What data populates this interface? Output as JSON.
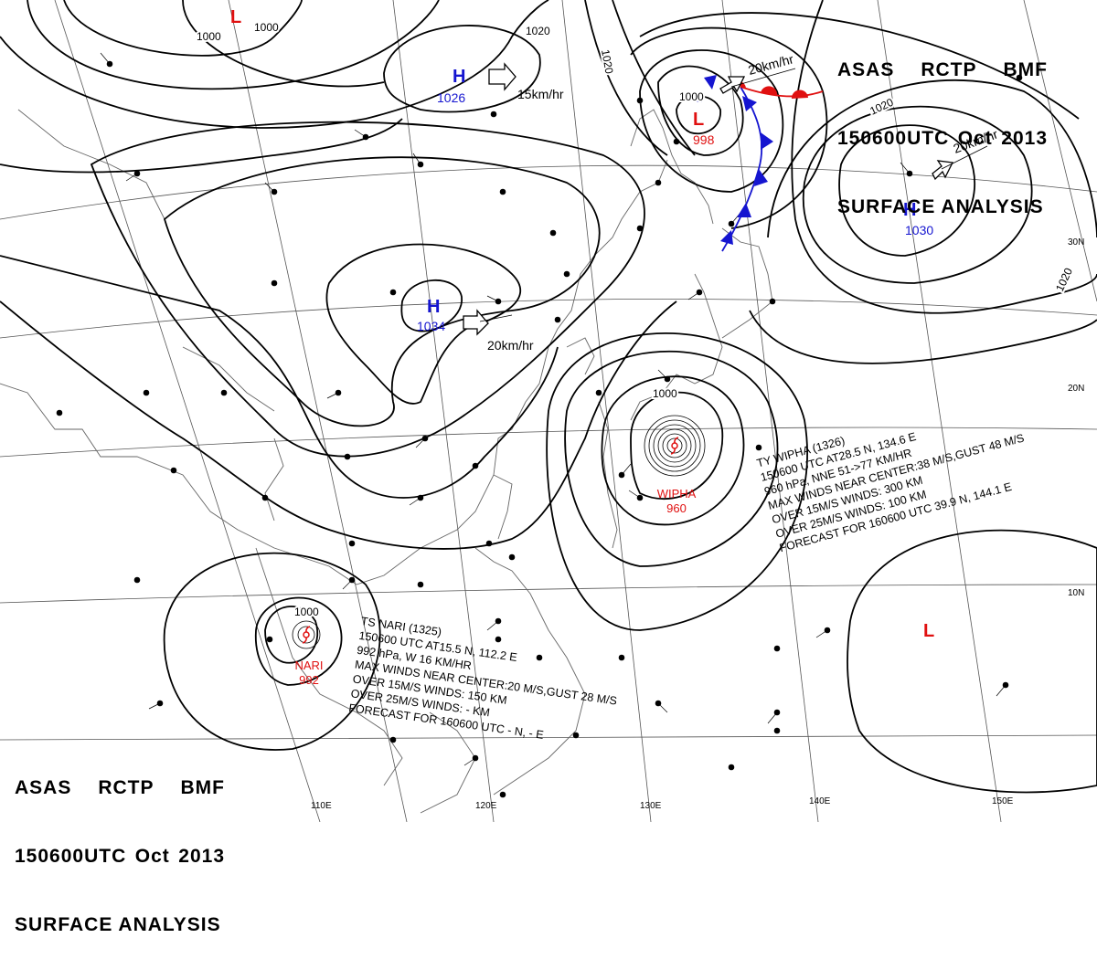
{
  "header": {
    "line1": [
      "ASAS",
      "RCTP",
      "BMF"
    ],
    "line2": [
      "150600UTC",
      "Oct",
      "2013"
    ],
    "line3": "SURFACE ANALYSIS"
  },
  "isobar_labels": [
    "1000",
    "1000",
    "1000",
    "1000",
    "1020",
    "1020",
    "1020",
    "1020",
    "1000"
  ],
  "pressure_centers": [
    {
      "type": "H",
      "value": "1026",
      "color": "#1515d0"
    },
    {
      "type": "H",
      "value": "1034",
      "color": "#1515d0"
    },
    {
      "type": "H",
      "value": "1030",
      "color": "#1515d0"
    },
    {
      "type": "L",
      "value": "998",
      "color": "#e01010"
    },
    {
      "type": "L",
      "value": "",
      "color": "#e01010"
    },
    {
      "type": "L",
      "value": "",
      "color": "#e01010"
    }
  ],
  "motion_labels": [
    "15km/hr",
    "20km/hr",
    "20km/hr",
    "20km/hr"
  ],
  "typhoons": [
    {
      "name": "WIPHA",
      "pressure": "960",
      "color": "#e01010",
      "bulletin": [
        "TY WIPHA  (1326)",
        "150600 UTC  AT28.5 N, 134.6 E",
        "960 hPa, NNE  51->77 KM/HR",
        "MAX WINDS NEAR CENTER:38 M/S,GUST 48 M/S",
        "OVER 15M/S WINDS: 300 KM",
        "OVER 25M/S WINDS: 100 KM",
        "FORECAST FOR 160600 UTC 39.9 N, 144.1 E"
      ]
    },
    {
      "name": "NARI",
      "pressure": "992",
      "color": "#e01010",
      "bulletin": [
        "TS  NARI  (1325)",
        "150600 UTC  AT15.5 N, 112.2 E",
        "992 hPa, W  16 KM/HR",
        "MAX WINDS NEAR CENTER:20 M/S,GUST 28 M/S",
        "OVER 15M/S WINDS: 150 KM",
        "OVER 25M/S WINDS: - KM",
        "FORECAST FOR 160600 UTC - N, - E"
      ]
    }
  ],
  "longitude_labels": [
    "110E",
    "120E",
    "130E",
    "140E",
    "150E"
  ],
  "latitude_labels": [
    "30N",
    "20N",
    "10N"
  ],
  "colors": {
    "high": "#1515d0",
    "low": "#e01010",
    "cold_front": "#1515d0",
    "warm_front": "#e01010"
  }
}
